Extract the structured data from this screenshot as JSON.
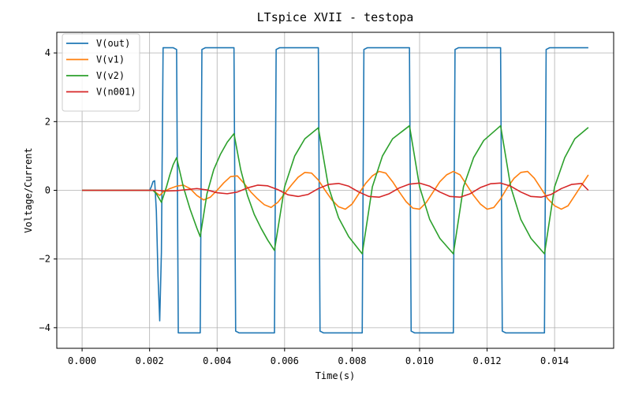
{
  "chart_data": {
    "type": "line",
    "title": "LTspice XVII - testopa",
    "xlabel": "Time(s)",
    "ylabel": "Voltage/Current",
    "xlim": [
      -0.00075,
      0.01575
    ],
    "ylim": [
      -4.6,
      4.6
    ],
    "xticks": [
      0.0,
      0.002,
      0.004,
      0.006,
      0.008,
      0.01,
      0.012,
      0.014
    ],
    "xtick_labels": [
      "0.000",
      "0.002",
      "0.004",
      "0.006",
      "0.008",
      "0.010",
      "0.012",
      "0.014"
    ],
    "yticks": [
      -4,
      -2,
      0,
      2,
      4
    ],
    "ytick_labels": [
      "−4",
      "−2",
      "0",
      "2",
      "4"
    ],
    "grid": true,
    "legend_position": "top-left",
    "series": [
      {
        "name": "V(out)",
        "color": "#1f77b4",
        "x": [
          0.0,
          0.002,
          0.00205,
          0.0021,
          0.00215,
          0.0022,
          0.00225,
          0.0023,
          0.00235,
          0.0024,
          0.00245,
          0.0027,
          0.0028,
          0.00285,
          0.0035,
          0.00355,
          0.00365,
          0.0045,
          0.00455,
          0.00465,
          0.0057,
          0.00575,
          0.00585,
          0.007,
          0.00705,
          0.00715,
          0.0083,
          0.00835,
          0.00845,
          0.0097,
          0.00975,
          0.00985,
          0.011,
          0.01105,
          0.01115,
          0.0124,
          0.01245,
          0.01255,
          0.0137,
          0.01375,
          0.01385,
          0.015
        ],
        "y": [
          0.0,
          0.0,
          0.1,
          0.25,
          0.28,
          -0.6,
          -2.5,
          -3.8,
          -1.8,
          4.15,
          4.15,
          4.15,
          4.1,
          -4.15,
          -4.15,
          4.1,
          4.15,
          4.15,
          -4.1,
          -4.15,
          -4.15,
          4.1,
          4.15,
          4.15,
          -4.1,
          -4.15,
          -4.15,
          4.1,
          4.15,
          4.15,
          -4.1,
          -4.15,
          -4.15,
          4.1,
          4.15,
          4.15,
          -4.1,
          -4.15,
          -4.15,
          4.1,
          4.15,
          4.15
        ]
      },
      {
        "name": "V(v1)",
        "color": "#ff7f0e",
        "x": [
          0.0,
          0.0021,
          0.0023,
          0.0024,
          0.0026,
          0.0028,
          0.003,
          0.0032,
          0.0034,
          0.0036,
          0.0038,
          0.004,
          0.0042,
          0.0044,
          0.0046,
          0.0048,
          0.005,
          0.0052,
          0.0054,
          0.0056,
          0.0058,
          0.006,
          0.0062,
          0.0064,
          0.0066,
          0.0068,
          0.007,
          0.0072,
          0.0074,
          0.0076,
          0.0078,
          0.008,
          0.0082,
          0.0084,
          0.0086,
          0.0088,
          0.009,
          0.0092,
          0.0094,
          0.0096,
          0.0098,
          0.01,
          0.0102,
          0.0104,
          0.0106,
          0.0108,
          0.011,
          0.0112,
          0.0114,
          0.0116,
          0.0118,
          0.012,
          0.0122,
          0.0124,
          0.0126,
          0.0128,
          0.013,
          0.0132,
          0.0134,
          0.0136,
          0.0138,
          0.014,
          0.0142,
          0.0144,
          0.0146,
          0.0148,
          0.015
        ],
        "y": [
          0.0,
          0.0,
          -0.15,
          -0.05,
          0.05,
          0.12,
          0.15,
          0.05,
          -0.15,
          -0.28,
          -0.2,
          0.0,
          0.22,
          0.4,
          0.42,
          0.2,
          -0.05,
          -0.25,
          -0.42,
          -0.5,
          -0.35,
          -0.1,
          0.15,
          0.38,
          0.52,
          0.5,
          0.3,
          0.0,
          -0.28,
          -0.48,
          -0.55,
          -0.4,
          -0.1,
          0.2,
          0.42,
          0.55,
          0.5,
          0.25,
          -0.05,
          -0.33,
          -0.52,
          -0.55,
          -0.35,
          -0.05,
          0.25,
          0.45,
          0.55,
          0.45,
          0.15,
          -0.15,
          -0.4,
          -0.55,
          -0.5,
          -0.25,
          0.08,
          0.35,
          0.52,
          0.55,
          0.35,
          0.05,
          -0.25,
          -0.45,
          -0.55,
          -0.45,
          -0.15,
          0.15,
          0.45
        ]
      },
      {
        "name": "V(v2)",
        "color": "#2ca02c",
        "x": [
          0.0,
          0.0021,
          0.0022,
          0.00235,
          0.0025,
          0.0026,
          0.0027,
          0.0028,
          0.003,
          0.0032,
          0.0034,
          0.0035,
          0.0037,
          0.0039,
          0.0041,
          0.0043,
          0.0045,
          0.0047,
          0.0049,
          0.0051,
          0.0053,
          0.0055,
          0.0057,
          0.006,
          0.0063,
          0.0066,
          0.007,
          0.0073,
          0.0076,
          0.0079,
          0.0083,
          0.0086,
          0.0089,
          0.0092,
          0.0097,
          0.01,
          0.0103,
          0.0106,
          0.011,
          0.0113,
          0.0116,
          0.0119,
          0.0124,
          0.0127,
          0.013,
          0.0133,
          0.0137,
          0.014,
          0.0143,
          0.0146,
          0.015
        ],
        "y": [
          0.0,
          0.0,
          -0.1,
          -0.35,
          0.1,
          0.45,
          0.75,
          0.95,
          0.1,
          -0.55,
          -1.1,
          -1.35,
          -0.1,
          0.6,
          1.05,
          1.4,
          1.65,
          0.6,
          -0.15,
          -0.7,
          -1.1,
          -1.45,
          -1.75,
          0.1,
          1.0,
          1.5,
          1.82,
          0.1,
          -0.8,
          -1.35,
          -1.85,
          0.1,
          1.0,
          1.5,
          1.88,
          0.1,
          -0.85,
          -1.4,
          -1.85,
          0.1,
          0.95,
          1.45,
          1.88,
          0.1,
          -0.85,
          -1.4,
          -1.85,
          0.1,
          0.95,
          1.5,
          1.83
        ]
      },
      {
        "name": "V(n001)",
        "color": "#d62728",
        "x": [
          0.0,
          0.0022,
          0.0025,
          0.0028,
          0.0031,
          0.0034,
          0.0037,
          0.004,
          0.0043,
          0.0046,
          0.0049,
          0.0052,
          0.0055,
          0.0058,
          0.0061,
          0.0064,
          0.0067,
          0.007,
          0.0073,
          0.0076,
          0.0079,
          0.0082,
          0.0085,
          0.0088,
          0.0091,
          0.0094,
          0.0097,
          0.01,
          0.0103,
          0.0106,
          0.0109,
          0.0112,
          0.0115,
          0.0118,
          0.0121,
          0.0124,
          0.0127,
          0.013,
          0.0133,
          0.0136,
          0.0139,
          0.0142,
          0.0145,
          0.0148,
          0.015
        ],
        "y": [
          0.0,
          0.0,
          -0.02,
          -0.01,
          0.02,
          0.05,
          0.01,
          -0.07,
          -0.1,
          -0.05,
          0.07,
          0.15,
          0.13,
          0.02,
          -0.13,
          -0.18,
          -0.12,
          0.05,
          0.17,
          0.2,
          0.12,
          -0.05,
          -0.18,
          -0.2,
          -0.1,
          0.07,
          0.18,
          0.21,
          0.12,
          -0.05,
          -0.18,
          -0.2,
          -0.1,
          0.08,
          0.19,
          0.21,
          0.12,
          -0.05,
          -0.18,
          -0.2,
          -0.12,
          0.05,
          0.17,
          0.2,
          0.0
        ]
      }
    ]
  }
}
